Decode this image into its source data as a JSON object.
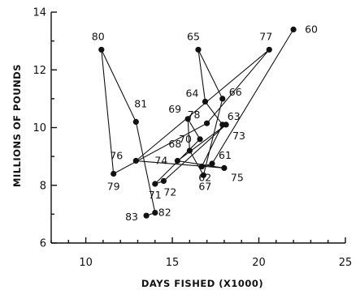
{
  "chart_data": {
    "type": "scatter",
    "title": "",
    "xlabel": "DAYS FISHED (X1000)",
    "ylabel": "MILLIONS OF POUNDS",
    "xlim": [
      8,
      25
    ],
    "ylim": [
      6,
      14
    ],
    "x_ticks": [
      10,
      15,
      20,
      25
    ],
    "y_ticks": [
      6,
      8,
      10,
      12,
      14
    ],
    "connected": true,
    "grid": false,
    "series": [
      {
        "points": [
          {
            "label": "60",
            "x": 22.0,
            "y": 13.4
          },
          {
            "label": "61",
            "x": 17.3,
            "y": 8.75
          },
          {
            "label": "62",
            "x": 16.7,
            "y": 8.65
          },
          {
            "label": "63",
            "x": 17.9,
            "y": 10.1
          },
          {
            "label": "64",
            "x": 16.9,
            "y": 10.9
          },
          {
            "label": "65",
            "x": 16.5,
            "y": 12.7
          },
          {
            "label": "66",
            "x": 17.9,
            "y": 11.0
          },
          {
            "label": "67",
            "x": 16.8,
            "y": 8.35
          },
          {
            "label": "68",
            "x": 16.0,
            "y": 9.2
          },
          {
            "label": "69",
            "x": 15.9,
            "y": 10.3
          },
          {
            "label": "70",
            "x": 16.6,
            "y": 9.6
          },
          {
            "label": "71",
            "x": 14.0,
            "y": 8.05
          },
          {
            "label": "72",
            "x": 14.5,
            "y": 8.15
          },
          {
            "label": "73",
            "x": 18.1,
            "y": 10.1
          },
          {
            "label": "74",
            "x": 15.3,
            "y": 8.85
          },
          {
            "label": "75",
            "x": 18.0,
            "y": 8.6
          },
          {
            "label": "76",
            "x": 12.9,
            "y": 8.85
          },
          {
            "label": "77",
            "x": 20.6,
            "y": 12.7
          },
          {
            "label": "78",
            "x": 17.0,
            "y": 10.15
          },
          {
            "label": "79",
            "x": 11.6,
            "y": 8.4
          },
          {
            "label": "80",
            "x": 10.9,
            "y": 12.7
          },
          {
            "label": "81",
            "x": 12.9,
            "y": 10.2
          },
          {
            "label": "82",
            "x": 14.0,
            "y": 7.05
          },
          {
            "label": "83",
            "x": 13.5,
            "y": 6.95
          }
        ]
      }
    ]
  }
}
